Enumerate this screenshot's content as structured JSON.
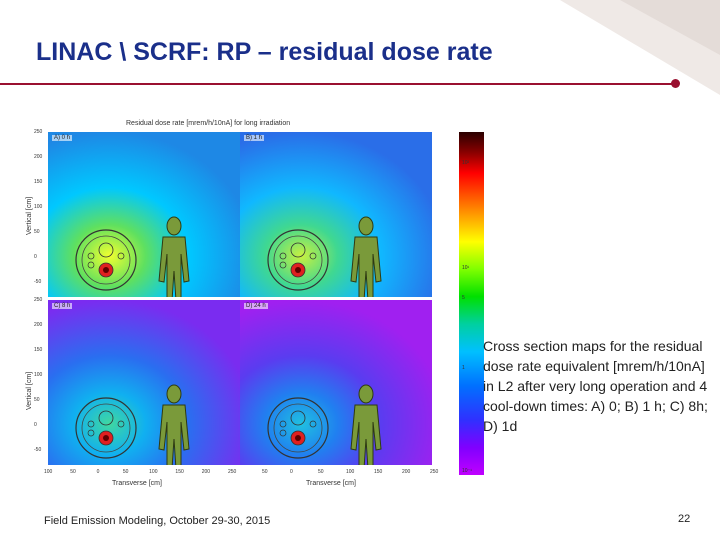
{
  "slide": {
    "title": "LINAC \\ SCRF: RP – residual dose rate",
    "footer": "Field Emission Modeling, October 29-30, 2015",
    "page_number": "22",
    "caption": "Cross section maps for the residual dose rate equivalent [mrem/h/10nA] in L2 after very long operation and 4 cool-down times: A) 0; B) 1 h; C) 8h; D) 1d"
  },
  "figure": {
    "title": "Residual dose rate [mrem/h/10nA] for long irradiation",
    "y_label": "Vertical [cm]",
    "x_label": "Transverse [cm]",
    "panels": [
      {
        "label": "A) 0 h",
        "level": 1.0
      },
      {
        "label": "B) 1 h",
        "level": 0.75
      },
      {
        "label": "C) 8 h",
        "level": 0.45
      },
      {
        "label": "D) 24 h",
        "level": 0.25
      }
    ],
    "y_ticks": [
      "250",
      "200",
      "150",
      "100",
      "50",
      "0",
      "-50"
    ],
    "x_ticks": [
      "100",
      "50",
      "0",
      "50",
      "100",
      "150",
      "200",
      "250",
      "50",
      "0",
      "50",
      "100",
      "150",
      "200",
      "250"
    ],
    "colorbar_ticks": [
      "10²",
      "10¹",
      "5",
      "1",
      "10⁻¹"
    ]
  }
}
